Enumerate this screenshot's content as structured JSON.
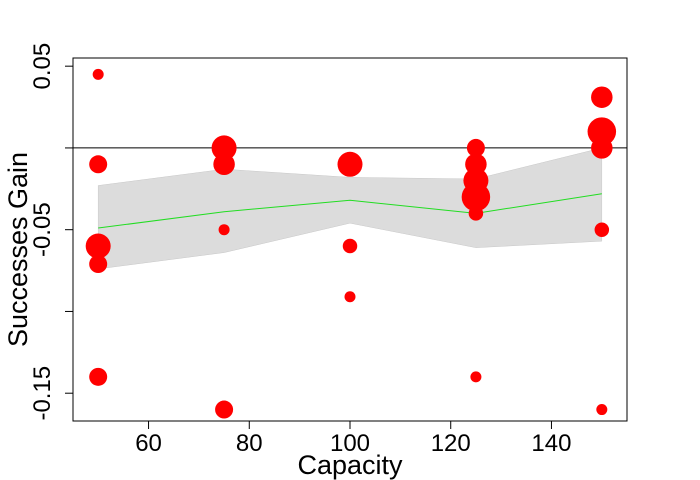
{
  "chart_data": {
    "type": "scatter",
    "title": "",
    "xlabel": "Capacity",
    "ylabel": "Successes Gain",
    "xlim": [
      45,
      155
    ],
    "ylim": [
      -0.167,
      0.055
    ],
    "x_ticks": [
      60,
      80,
      100,
      120,
      140
    ],
    "x_tick_labels": [
      "60",
      "80",
      "100",
      "120",
      "140"
    ],
    "y_ticks": [
      0.05,
      0.0,
      -0.05,
      -0.1,
      -0.15
    ],
    "y_tick_labels": [
      "0.05",
      "",
      "-0.05",
      "",
      "-0.15"
    ],
    "reference_line_y": 0.0,
    "grid": false,
    "colors": {
      "points": "#ff0000",
      "band": "#dcdcdc",
      "trend_line": "#22dd22",
      "reference_line": "#000000"
    },
    "points": [
      {
        "x": 50,
        "y": 0.045,
        "size": 1
      },
      {
        "x": 50,
        "y": -0.01,
        "size": 2
      },
      {
        "x": 50,
        "y": -0.06,
        "size": 3
      },
      {
        "x": 50,
        "y": -0.071,
        "size": 2
      },
      {
        "x": 50,
        "y": -0.14,
        "size": 2
      },
      {
        "x": 75,
        "y": 0.0,
        "size": 3
      },
      {
        "x": 75,
        "y": -0.01,
        "size": 2.5
      },
      {
        "x": 75,
        "y": -0.05,
        "size": 1
      },
      {
        "x": 75,
        "y": -0.16,
        "size": 2
      },
      {
        "x": 100,
        "y": -0.01,
        "size": 3
      },
      {
        "x": 100,
        "y": -0.06,
        "size": 1.5
      },
      {
        "x": 100,
        "y": -0.091,
        "size": 1
      },
      {
        "x": 125,
        "y": 0.0,
        "size": 2
      },
      {
        "x": 125,
        "y": -0.01,
        "size": 2.5
      },
      {
        "x": 125,
        "y": -0.02,
        "size": 3
      },
      {
        "x": 125,
        "y": -0.03,
        "size": 3.5
      },
      {
        "x": 125,
        "y": -0.04,
        "size": 1.5
      },
      {
        "x": 125,
        "y": -0.14,
        "size": 1
      },
      {
        "x": 150,
        "y": 0.031,
        "size": 2.5
      },
      {
        "x": 150,
        "y": 0.01,
        "size": 3.5
      },
      {
        "x": 150,
        "y": 0.0,
        "size": 2.5
      },
      {
        "x": 150,
        "y": -0.05,
        "size": 1.5
      },
      {
        "x": 150,
        "y": -0.16,
        "size": 1
      }
    ],
    "trend": {
      "x": [
        50,
        75,
        100,
        125,
        150
      ],
      "y": [
        -0.049,
        -0.039,
        -0.032,
        -0.04,
        -0.028
      ]
    },
    "band": {
      "x": [
        50,
        75,
        100,
        125,
        150
      ],
      "upper": [
        -0.023,
        -0.013,
        -0.018,
        -0.019,
        0.0
      ],
      "lower": [
        -0.074,
        -0.064,
        -0.046,
        -0.061,
        -0.057
      ]
    }
  }
}
